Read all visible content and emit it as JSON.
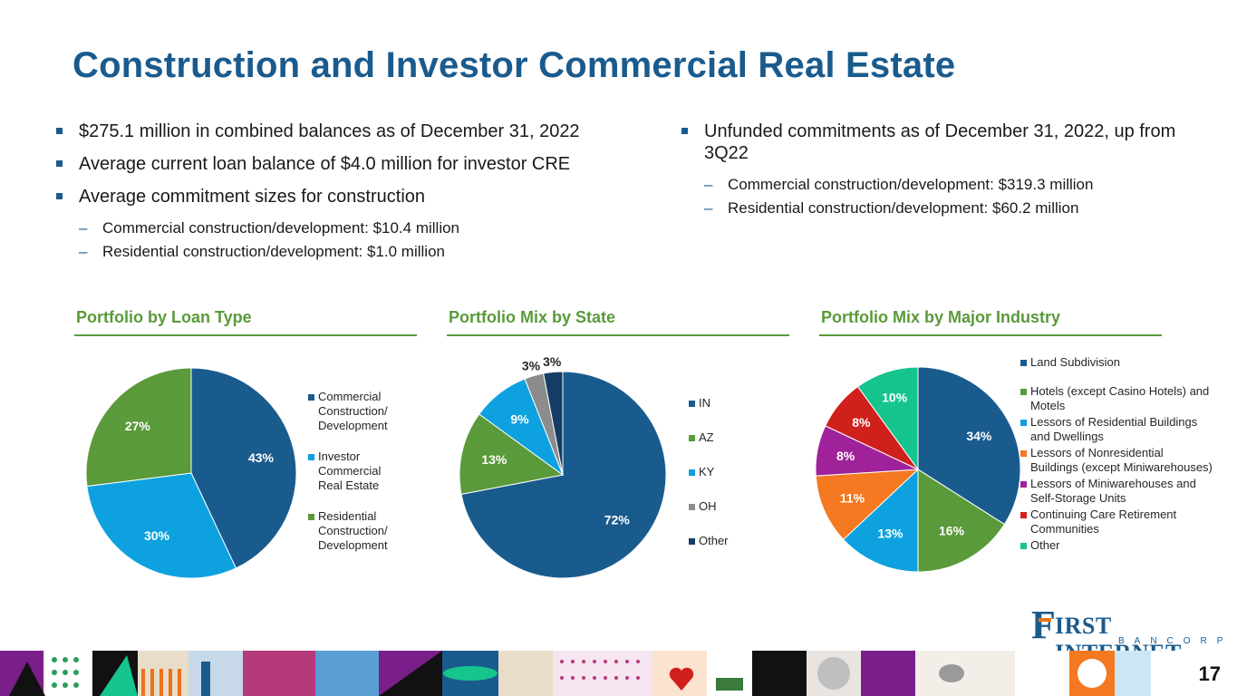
{
  "title": "Construction and Investor Commercial Real Estate",
  "bullets_left": [
    {
      "text": "$275.1 million in combined balances as of December 31, 2022",
      "subs": []
    },
    {
      "text": "Average current loan balance of $4.0 million for investor CRE",
      "subs": []
    },
    {
      "text": "Average commitment sizes for construction",
      "subs": [
        "Commercial construction/development: $10.4 million",
        "Residential construction/development: $1.0 million"
      ]
    }
  ],
  "bullets_right": [
    {
      "text": "Unfunded commitments as of December 31, 2022, up from 3Q22",
      "subs": [
        "Commercial construction/development: $319.3 million",
        "Residential construction/development: $60.2 million"
      ]
    }
  ],
  "chart_data": [
    {
      "type": "pie",
      "title": "Portfolio by Loan Type",
      "categories": [
        "Commercial Construction/ Development",
        "Investor Commercial Real Estate",
        "Residential Construction/ Development"
      ],
      "legend_lines": [
        [
          "Commercial",
          "Construction/",
          "Development"
        ],
        [
          "Investor",
          "Commercial",
          "Real Estate"
        ],
        [
          "Residential",
          "Construction/",
          "Development"
        ]
      ],
      "values": [
        43,
        30,
        27
      ],
      "labels": [
        "43%",
        "30%",
        "27%"
      ],
      "colors": [
        "#1a5b8e",
        "#0ea1e0",
        "#5a9a3a"
      ]
    },
    {
      "type": "pie",
      "title": "Portfolio Mix by State",
      "categories": [
        "IN",
        "AZ",
        "KY",
        "OH",
        "Other"
      ],
      "legend_lines": [
        [
          "IN"
        ],
        [
          "AZ"
        ],
        [
          "KY"
        ],
        [
          "OH"
        ],
        [
          "Other"
        ]
      ],
      "values": [
        72,
        13,
        9,
        3,
        3
      ],
      "labels": [
        "72%",
        "13%",
        "9%",
        "3%",
        "3%"
      ],
      "colors": [
        "#1a5b8e",
        "#5a9a3a",
        "#0ea1e0",
        "#8c8c8c",
        "#153d66"
      ]
    },
    {
      "type": "pie",
      "title": "Portfolio Mix by Major Industry",
      "categories": [
        "Land Subdivision",
        "Hotels (except Casino Hotels) and Motels",
        "Lessors of Residential Buildings and Dwellings",
        "Lessors of Nonresidential Buildings (except Miniwarehouses)",
        "Lessors of Miniwarehouses and Self-Storage Units",
        "Continuing Care Retirement Communities",
        "Other"
      ],
      "legend_lines": [
        [
          "Land Subdivision"
        ],
        [
          "Hotels (except Casino Hotels) and",
          "Motels"
        ],
        [
          "Lessors of Residential Buildings",
          "and Dwellings"
        ],
        [
          "Lessors of Nonresidential",
          "Buildings (except Miniwarehouses)"
        ],
        [
          "Lessors of Miniwarehouses and",
          "Self-Storage Units"
        ],
        [
          "Continuing Care Retirement",
          "Communities"
        ],
        [
          "Other"
        ]
      ],
      "values": [
        34,
        16,
        13,
        11,
        8,
        8,
        10
      ],
      "labels": [
        "34%",
        "16%",
        "13%",
        "11%",
        "8%",
        "8%",
        "10%"
      ],
      "colors": [
        "#1a5b8e",
        "#5a9a3a",
        "#0ea1e0",
        "#f47920",
        "#a0229a",
        "#d0201c",
        "#16c48e"
      ]
    }
  ],
  "logo": {
    "first_letter": "F",
    "wordmark": "IRST INTERNET",
    "subline": "BANCORP"
  },
  "page_number": "17"
}
